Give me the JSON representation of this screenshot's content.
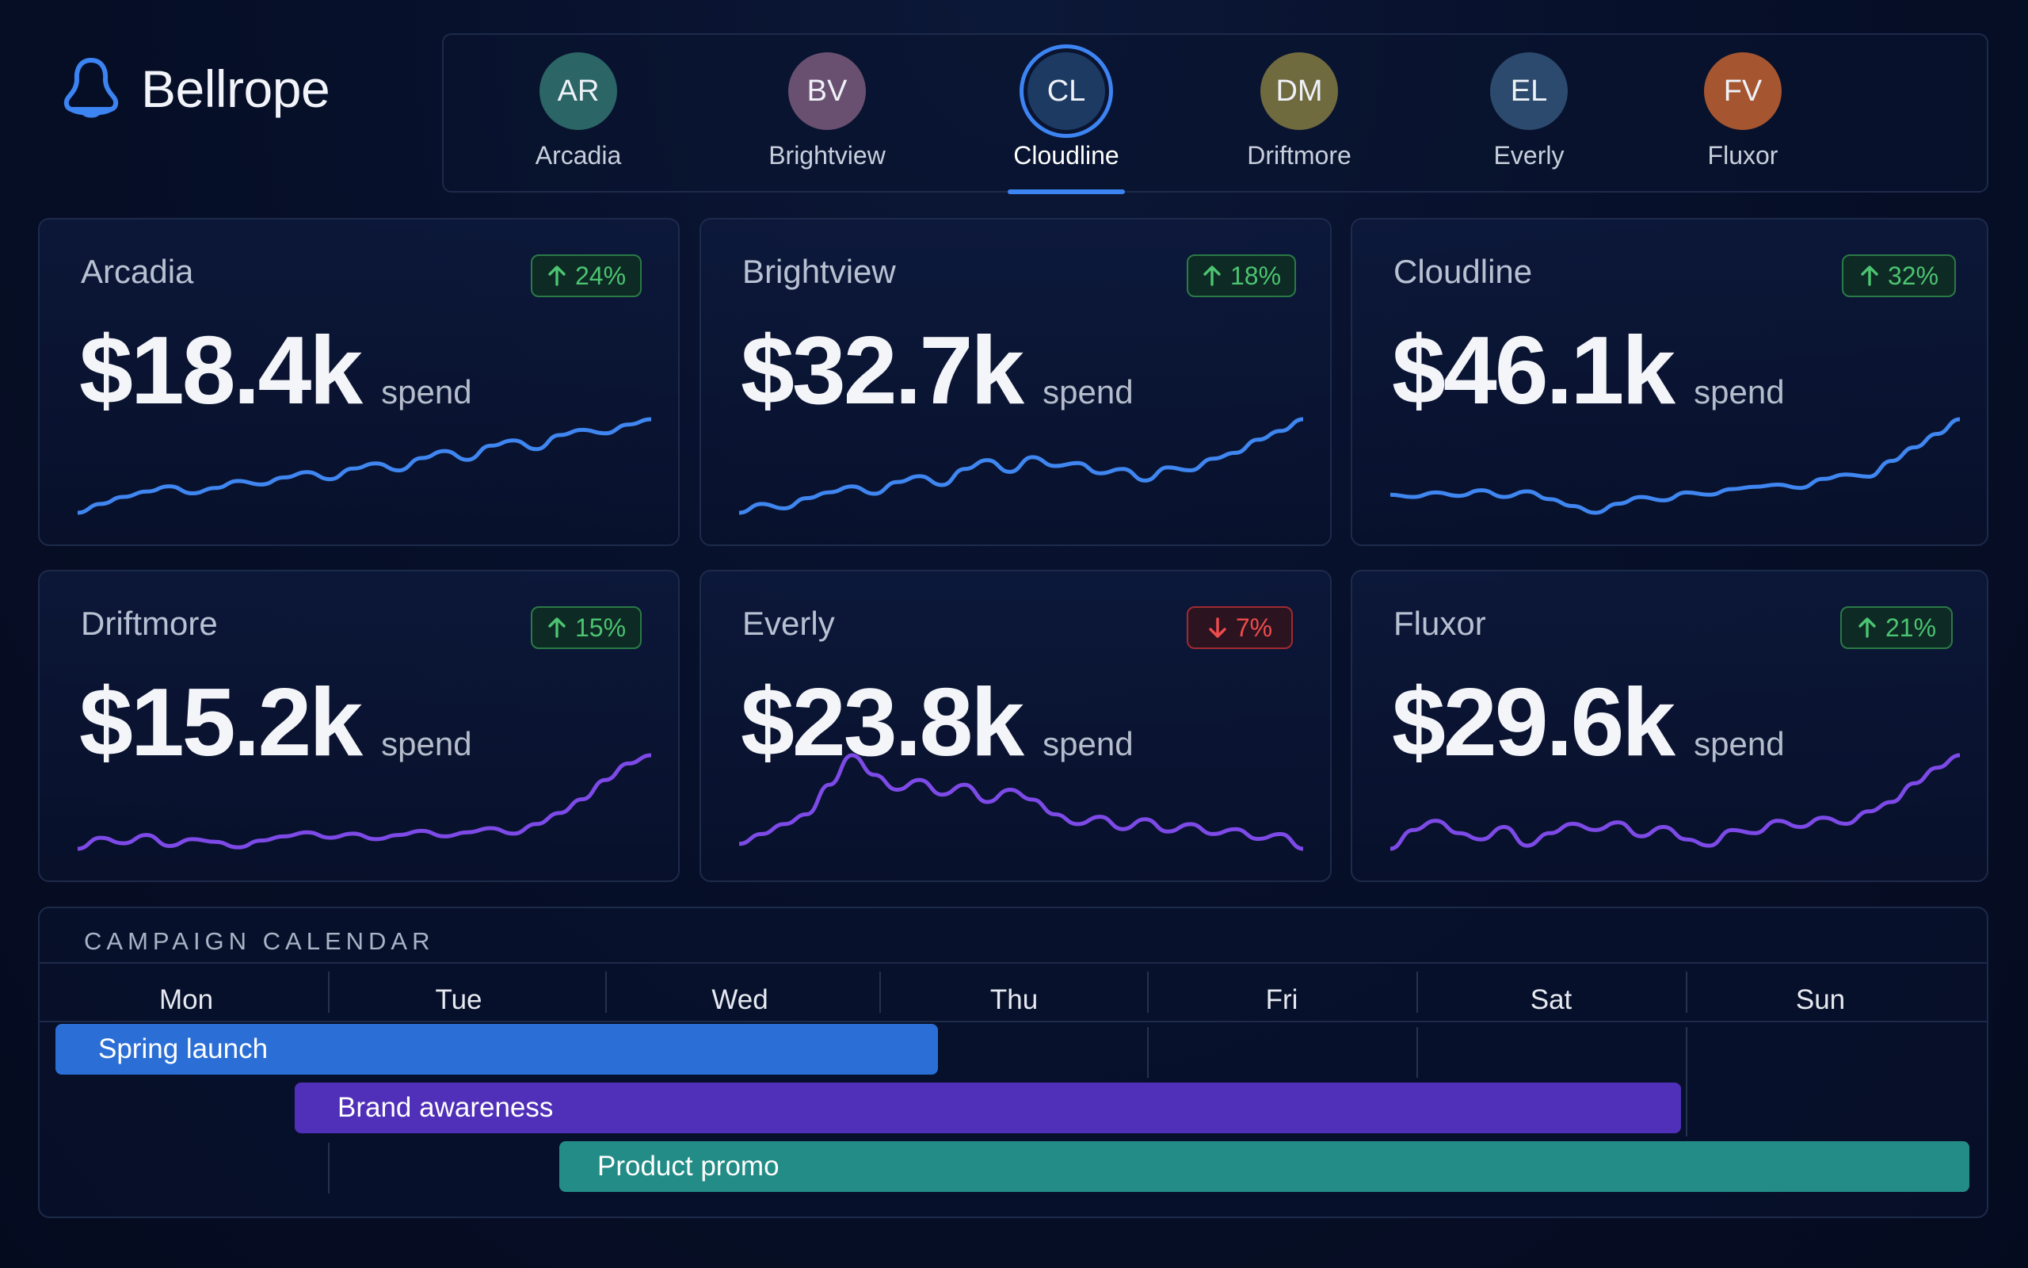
{
  "brand": {
    "name": "Bellrope",
    "icon": "bell-icon",
    "accent": "#3d84f3"
  },
  "clients": [
    {
      "initials": "AR",
      "label": "Arcadia",
      "color": "#2b6566",
      "active": false
    },
    {
      "initials": "BV",
      "label": "Brightview",
      "color": "#6a5070",
      "active": false
    },
    {
      "initials": "CL",
      "label": "Cloudline",
      "color": "#1d3a63",
      "active": true
    },
    {
      "initials": "DM",
      "label": "Driftmore",
      "color": "#706a3f",
      "active": false
    },
    {
      "initials": "EL",
      "label": "Everly",
      "color": "#2c4a6e",
      "active": false
    },
    {
      "initials": "FV",
      "label": "Fluxor",
      "color": "#a5552f",
      "active": false
    }
  ],
  "cards": [
    {
      "name": "Arcadia",
      "value": "$18.4k",
      "unit": "spend",
      "change": "24%",
      "direction": "up",
      "line_color": "#3f86f1",
      "trend": [
        5,
        10,
        14,
        17,
        20,
        16,
        19,
        23,
        21,
        25,
        28,
        24,
        30,
        33,
        29,
        36,
        40,
        35,
        43,
        46,
        41,
        49,
        52,
        50,
        55,
        58
      ]
    },
    {
      "name": "Brightview",
      "value": "$32.7k",
      "unit": "spend",
      "change": "18%",
      "direction": "up",
      "line_color": "#3f86f1",
      "trend": [
        8,
        14,
        11,
        18,
        22,
        26,
        21,
        29,
        33,
        27,
        38,
        44,
        36,
        46,
        40,
        42,
        35,
        38,
        30,
        39,
        37,
        45,
        49,
        58,
        64,
        72
      ]
    },
    {
      "name": "Cloudline",
      "value": "$46.1k",
      "unit": "spend",
      "change": "32%",
      "direction": "up",
      "line_color": "#3f86f1",
      "trend": [
        28,
        26,
        30,
        27,
        32,
        26,
        31,
        24,
        18,
        12,
        20,
        26,
        23,
        30,
        28,
        33,
        35,
        37,
        34,
        42,
        46,
        44,
        58,
        70,
        82,
        95
      ]
    },
    {
      "name": "Driftmore",
      "value": "$15.2k",
      "unit": "spend",
      "change": "15%",
      "direction": "up",
      "line_color": "#7d4ae8",
      "trend": [
        10,
        18,
        14,
        20,
        12,
        17,
        15,
        11,
        16,
        19,
        22,
        18,
        21,
        17,
        20,
        23,
        19,
        22,
        25,
        21,
        28,
        36,
        46,
        60,
        72,
        78
      ]
    },
    {
      "name": "Everly",
      "value": "$23.8k",
      "unit": "spend",
      "change": "7%",
      "direction": "down",
      "line_color": "#7d4ae8",
      "trend": [
        16,
        20,
        24,
        28,
        40,
        52,
        44,
        38,
        42,
        36,
        40,
        33,
        38,
        34,
        28,
        24,
        27,
        22,
        26,
        21,
        24,
        20,
        22,
        18,
        20,
        14
      ]
    },
    {
      "name": "Fluxor",
      "value": "$29.6k",
      "unit": "spend",
      "change": "21%",
      "direction": "up",
      "line_color": "#7d4ae8",
      "trend": [
        10,
        22,
        28,
        20,
        16,
        24,
        12,
        20,
        26,
        22,
        27,
        18,
        24,
        16,
        12,
        22,
        20,
        28,
        24,
        30,
        26,
        34,
        40,
        52,
        62,
        70
      ]
    }
  ],
  "calendar": {
    "title": "CAMPAIGN CALENDAR",
    "days": [
      "Mon",
      "Tue",
      "Wed",
      "Thu",
      "Fri",
      "Sat",
      "Sun"
    ],
    "campaigns": [
      {
        "label": "Spring launch",
        "color": "#2b6fd6"
      },
      {
        "label": "Brand awareness",
        "color": "#5030b8"
      },
      {
        "label": "Product promo",
        "color": "#238c86"
      }
    ]
  }
}
